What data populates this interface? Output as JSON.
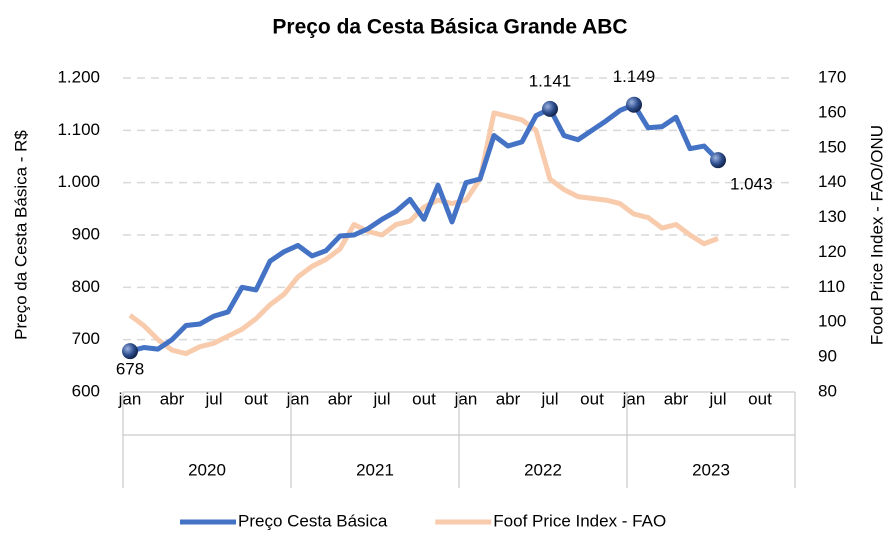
{
  "chart_data": {
    "type": "line",
    "title": "Preço da Cesta Básica  Grande ABC",
    "y_label": "Preço da Cesta Básica - R$",
    "y2_label": "Food Price Index - FAO/ONU",
    "categories": [
      "jan",
      null,
      null,
      "abr",
      null,
      null,
      "jul",
      null,
      null,
      "out",
      null,
      null,
      "jan",
      null,
      null,
      "abr",
      null,
      null,
      "jul",
      null,
      null,
      "out",
      null,
      null,
      "jan",
      null,
      null,
      "abr",
      null,
      null,
      "jul",
      null,
      null,
      "out",
      null,
      null,
      "jan",
      null,
      null,
      "abr",
      null,
      null,
      "jul",
      null,
      null,
      "out",
      null,
      null
    ],
    "groups": [
      "2020",
      "2021",
      "2022",
      "2023"
    ],
    "series": [
      {
        "name": "Preço Cesta Básica",
        "color": "#4472c4",
        "values": [
          678,
          685,
          682,
          700,
          727,
          730,
          745,
          753,
          800,
          795,
          850,
          868,
          880,
          860,
          870,
          898,
          900,
          912,
          930,
          945,
          968,
          930,
          995,
          925,
          1000,
          1007,
          1090,
          1070,
          1078,
          1128,
          1141,
          1090,
          1082,
          1100,
          1118,
          1138,
          1149,
          1105,
          1107,
          1125,
          1065,
          1070,
          1043,
          null,
          null,
          null,
          null,
          null
        ],
        "value_labels": [
          "678",
          null,
          null,
          null,
          null,
          null,
          null,
          null,
          null,
          null,
          null,
          null,
          null,
          null,
          null,
          null,
          null,
          null,
          null,
          null,
          null,
          null,
          null,
          null,
          null,
          null,
          null,
          null,
          null,
          null,
          "1.141",
          null,
          null,
          null,
          null,
          null,
          "1.149",
          null,
          null,
          null,
          null,
          null,
          "1.043",
          null,
          null,
          null,
          null,
          null
        ]
      },
      {
        "name": "Foof Price Index - FAO",
        "color": "#f8cbad",
        "axis": "y2",
        "values": [
          102,
          99,
          95,
          92,
          91,
          93,
          94,
          96,
          98,
          101,
          105,
          108,
          113,
          116,
          118,
          121,
          128,
          126,
          125,
          128,
          129,
          133,
          135,
          134,
          135,
          141,
          160,
          159,
          158,
          155,
          141,
          138,
          136,
          135.5,
          135,
          134,
          131,
          130,
          127,
          128,
          125,
          122.5,
          124,
          null,
          null,
          null,
          null,
          null
        ]
      }
    ],
    "ylim": [
      600,
      1200
    ],
    "yticks": [
      600,
      700,
      800,
      900,
      {
        "value": 1000,
        "label": "1.000"
      },
      {
        "value": 1100,
        "label": "1.100"
      },
      {
        "value": 1200,
        "label": "1.200"
      }
    ],
    "y2lim": [
      80,
      170
    ],
    "y2ticks": [
      80,
      90,
      100,
      110,
      120,
      130,
      140,
      150,
      160,
      170
    ],
    "grid": true,
    "legend": "bottom"
  }
}
